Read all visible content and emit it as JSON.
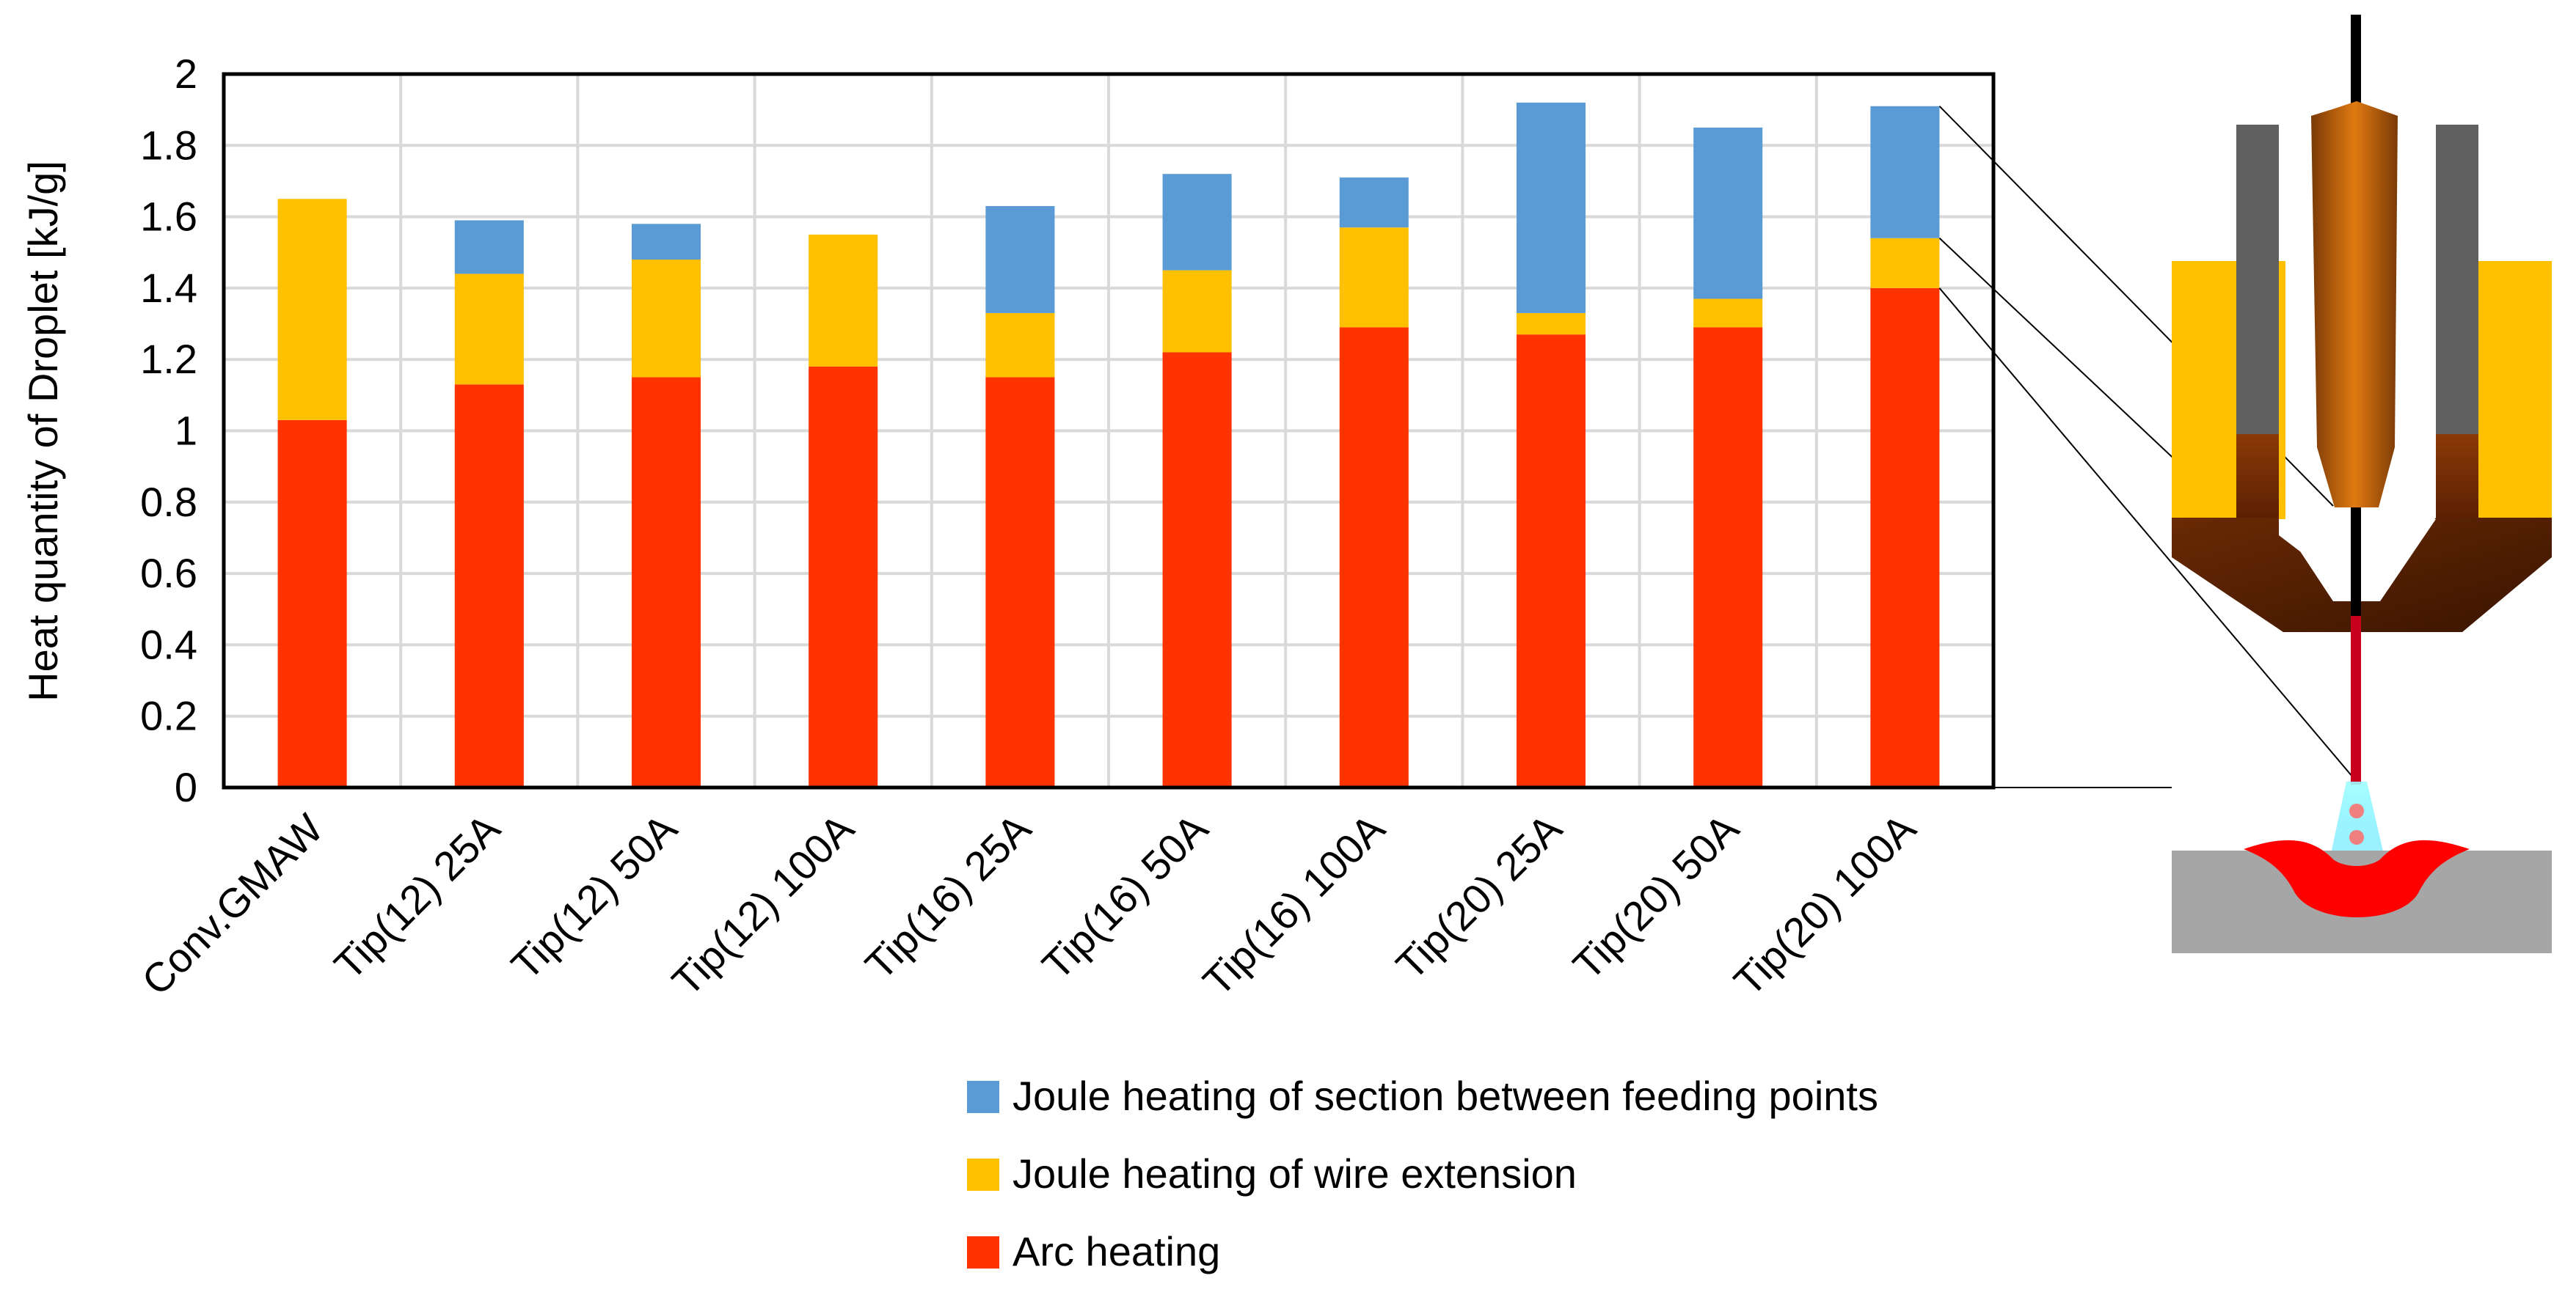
{
  "chart_data": {
    "type": "bar",
    "stacked": true,
    "title": "",
    "xlabel": "",
    "ylabel": "Heat quantity of Droplet [kJ/g]",
    "ylim": [
      0,
      2
    ],
    "yticks": [
      0,
      0.2,
      0.4,
      0.6,
      0.8,
      1,
      1.2,
      1.4,
      1.6,
      1.8,
      2
    ],
    "ytick_labels": [
      "0",
      "0.2",
      "0.4",
      "0.6",
      "0.8",
      "1",
      "1.2",
      "1.4",
      "1.6",
      "1.8",
      "2"
    ],
    "grid": true,
    "legend_position": "bottom",
    "categories": [
      "Conv.GMAW",
      "Tip(12) 25A",
      "Tip(12) 50A",
      "Tip(12) 100A",
      "Tip(16) 25A",
      "Tip(16) 50A",
      "Tip(16) 100A",
      "Tip(20) 25A",
      "Tip(20) 50A",
      "Tip(20) 100A"
    ],
    "series": [
      {
        "name": "Arc heating",
        "color": "#ff3300",
        "values": [
          1.03,
          1.13,
          1.15,
          1.18,
          1.15,
          1.22,
          1.29,
          1.27,
          1.29,
          1.4
        ]
      },
      {
        "name": "Joule heating of wire extension",
        "color": "#ffc000",
        "values": [
          0.62,
          0.31,
          0.33,
          0.37,
          0.18,
          0.23,
          0.28,
          0.06,
          0.08,
          0.14
        ]
      },
      {
        "name": "Joule heating of section between feeding points",
        "color": "#5b9bd5",
        "values": [
          0,
          0.15,
          0.1,
          0,
          0.3,
          0.27,
          0.14,
          0.59,
          0.48,
          0.37
        ]
      }
    ],
    "legend_order": [
      2,
      1,
      0
    ]
  },
  "colors": {
    "arc": "#ff3300",
    "wire_extension": "#ffc000",
    "feeding_section": "#5b9bd5",
    "grid": "#d9d9d9",
    "axis": "#000000"
  },
  "illustration": {
    "icon": "welding-torch-icon"
  }
}
